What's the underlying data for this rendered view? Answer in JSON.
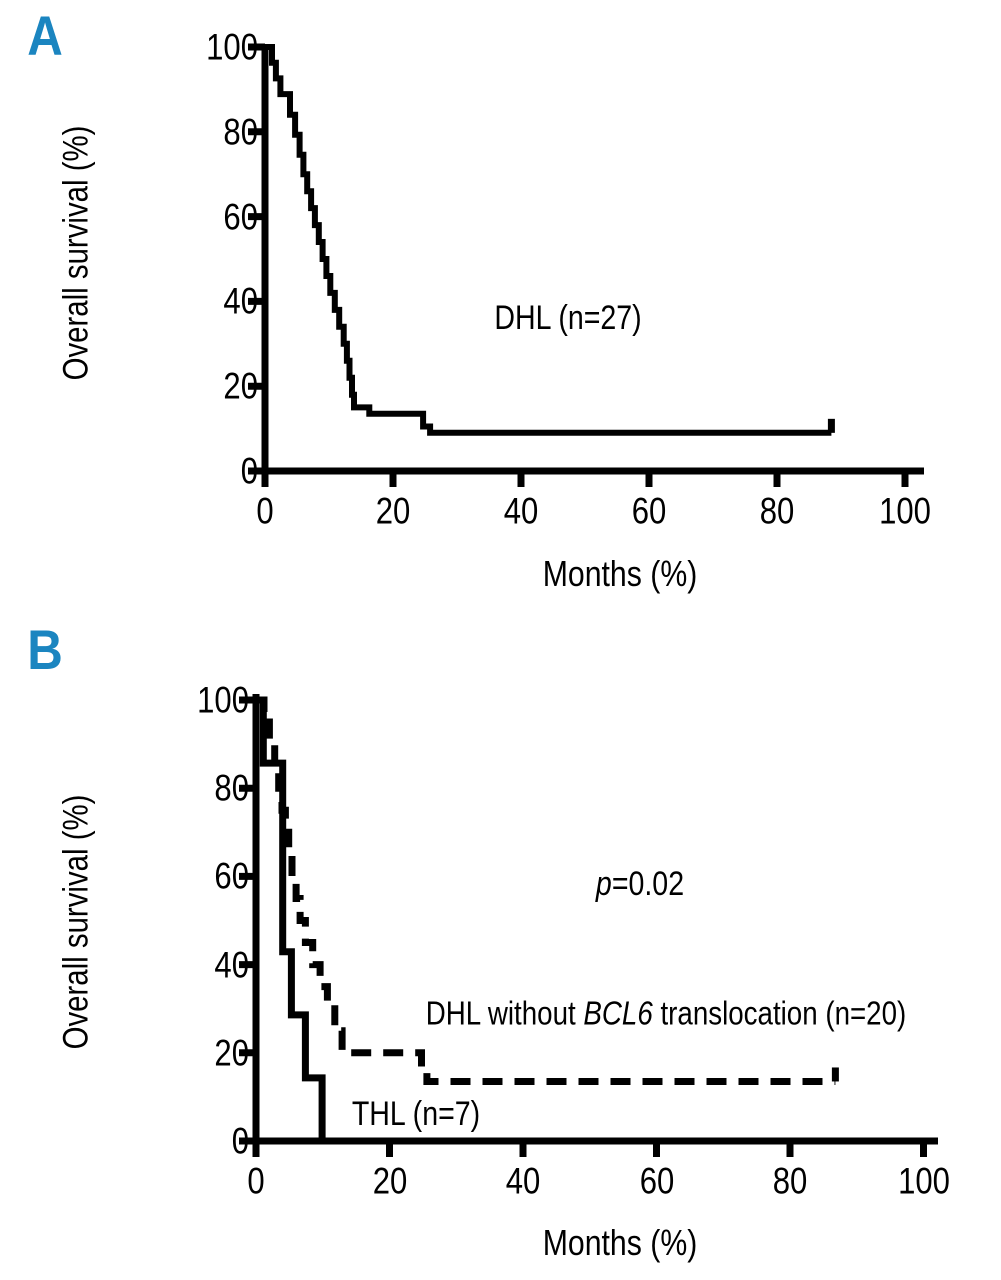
{
  "figure": {
    "background": "#ffffff",
    "curve_color": "#000000",
    "accent_blue": "#1b85c0"
  },
  "panels": {
    "a": {
      "letter": "A",
      "ylabel": "Overall survival (%)",
      "xlabel": "Months (%)",
      "series_label": "DHL (n=27)"
    },
    "b": {
      "letter": "B",
      "ylabel": "Overall survival (%)",
      "xlabel": "Months (%)",
      "pvalue": {
        "italic": "p",
        "rest": "=0.02"
      },
      "legend_dashed": {
        "pre": "DHL without ",
        "gene": "BCL6",
        "post": " translocation (n=20)"
      },
      "legend_solid": "THL (n=7)"
    }
  },
  "chart_data": [
    {
      "type": "line",
      "subtype": "kaplan-meier-step",
      "panel": "A",
      "title": "",
      "xlabel": "Months (%)",
      "ylabel": "Overall survival (%)",
      "xlim": [
        0,
        100
      ],
      "ylim": [
        0,
        100
      ],
      "xticks": [
        0,
        20,
        40,
        60,
        80,
        100
      ],
      "yticks": [
        0,
        20,
        40,
        60,
        80,
        100
      ],
      "grid": false,
      "legend_position": "inline annotation",
      "series": [
        {
          "name": "DHL (n=27)",
          "n": 27,
          "line": "solid",
          "color": "#000000",
          "points_format": "pre-stepped polyline vertices [months, percent]",
          "points": [
            [
              0,
              100
            ],
            [
              1.1,
              100
            ],
            [
              1.1,
              96.3
            ],
            [
              1.7,
              96.3
            ],
            [
              1.7,
              92.6
            ],
            [
              2.4,
              92.6
            ],
            [
              2.4,
              88.9
            ],
            [
              3.9,
              88.9
            ],
            [
              3.9,
              84
            ],
            [
              4.7,
              84
            ],
            [
              4.7,
              79.3
            ],
            [
              5.4,
              79.3
            ],
            [
              5.4,
              74.6
            ],
            [
              6,
              74.6
            ],
            [
              6,
              70
            ],
            [
              6.6,
              70
            ],
            [
              6.6,
              66
            ],
            [
              7.2,
              66
            ],
            [
              7.2,
              62
            ],
            [
              7.8,
              62
            ],
            [
              7.8,
              58
            ],
            [
              8.4,
              58
            ],
            [
              8.4,
              54
            ],
            [
              9,
              54
            ],
            [
              9,
              50
            ],
            [
              9.6,
              50
            ],
            [
              9.6,
              46
            ],
            [
              10.2,
              46
            ],
            [
              10.2,
              42
            ],
            [
              10.9,
              42
            ],
            [
              10.9,
              38
            ],
            [
              11.6,
              38
            ],
            [
              11.6,
              34
            ],
            [
              12.3,
              34
            ],
            [
              12.3,
              30
            ],
            [
              12.8,
              30
            ],
            [
              12.8,
              26
            ],
            [
              13.2,
              26
            ],
            [
              13.2,
              22
            ],
            [
              13.6,
              22
            ],
            [
              13.6,
              18
            ],
            [
              13.9,
              18
            ],
            [
              13.9,
              15
            ],
            [
              16.3,
              15
            ],
            [
              16.3,
              13.5
            ],
            [
              24.7,
              13.5
            ],
            [
              24.7,
              10.5
            ],
            [
              25.8,
              10.5
            ],
            [
              25.8,
              9
            ],
            [
              88.5,
              9
            ]
          ],
          "censor_marks": [
            [
              88.5,
              9
            ]
          ]
        }
      ],
      "annotations": [
        {
          "text": "DHL (n=27)",
          "x": 47,
          "y": 64
        }
      ]
    },
    {
      "type": "line",
      "subtype": "kaplan-meier-step",
      "panel": "B",
      "title": "",
      "xlabel": "Months (%)",
      "ylabel": "Overall survival (%)",
      "xlim": [
        0,
        100
      ],
      "ylim": [
        0,
        100
      ],
      "xticks": [
        0,
        20,
        40,
        60,
        80,
        100
      ],
      "yticks": [
        0,
        20,
        40,
        60,
        80,
        100
      ],
      "grid": false,
      "legend_position": "inline annotations",
      "series": [
        {
          "name": "DHL without BCL6 translocation (n=20)",
          "n": 20,
          "line": "dashed",
          "color": "#000000",
          "points_format": "pre-stepped polyline vertices [months, percent]",
          "points": [
            [
              0,
              100
            ],
            [
              1.2,
              100
            ],
            [
              1.2,
              95
            ],
            [
              2,
              95
            ],
            [
              2,
              90
            ],
            [
              2.8,
              90
            ],
            [
              2.8,
              85
            ],
            [
              3.4,
              85
            ],
            [
              3.4,
              80
            ],
            [
              3.9,
              80
            ],
            [
              3.9,
              75
            ],
            [
              4.4,
              75
            ],
            [
              4.4,
              70
            ],
            [
              4.9,
              70
            ],
            [
              4.9,
              65
            ],
            [
              5.4,
              65
            ],
            [
              5.4,
              60
            ],
            [
              6,
              60
            ],
            [
              6,
              55
            ],
            [
              6.6,
              55
            ],
            [
              6.6,
              50
            ],
            [
              7.4,
              50
            ],
            [
              7.4,
              45
            ],
            [
              8.5,
              45
            ],
            [
              8.5,
              40
            ],
            [
              9.6,
              40
            ],
            [
              9.6,
              35
            ],
            [
              10.7,
              35
            ],
            [
              10.7,
              30
            ],
            [
              11.8,
              30
            ],
            [
              11.8,
              25
            ],
            [
              12.9,
              25
            ],
            [
              12.9,
              20
            ],
            [
              24.8,
              20
            ],
            [
              24.8,
              16
            ],
            [
              25.6,
              16
            ],
            [
              25.6,
              13.5
            ],
            [
              86.8,
              13.5
            ]
          ],
          "censor_marks": [
            [
              86.8,
              13.5
            ]
          ]
        },
        {
          "name": "THL (n=7)",
          "n": 7,
          "line": "solid",
          "color": "#000000",
          "points_format": "pre-stepped polyline vertices [months, percent]",
          "points": [
            [
              0,
              100
            ],
            [
              1.1,
              100
            ],
            [
              1.1,
              85.7
            ],
            [
              4,
              85.7
            ],
            [
              4,
              42.9
            ],
            [
              5.3,
              42.9
            ],
            [
              5.3,
              28.6
            ],
            [
              7.4,
              28.6
            ],
            [
              7.4,
              14.3
            ],
            [
              9.9,
              14.3
            ],
            [
              9.9,
              0
            ]
          ],
          "censor_marks": []
        }
      ],
      "annotations": [
        {
          "text": "p=0.02",
          "x": 57,
          "y": 58
        },
        {
          "text": "DHL without BCL6 translocation (n=20)",
          "x": 61,
          "y": 29
        },
        {
          "text": "THL (n=7)",
          "x": 24,
          "y": 6
        }
      ]
    }
  ]
}
